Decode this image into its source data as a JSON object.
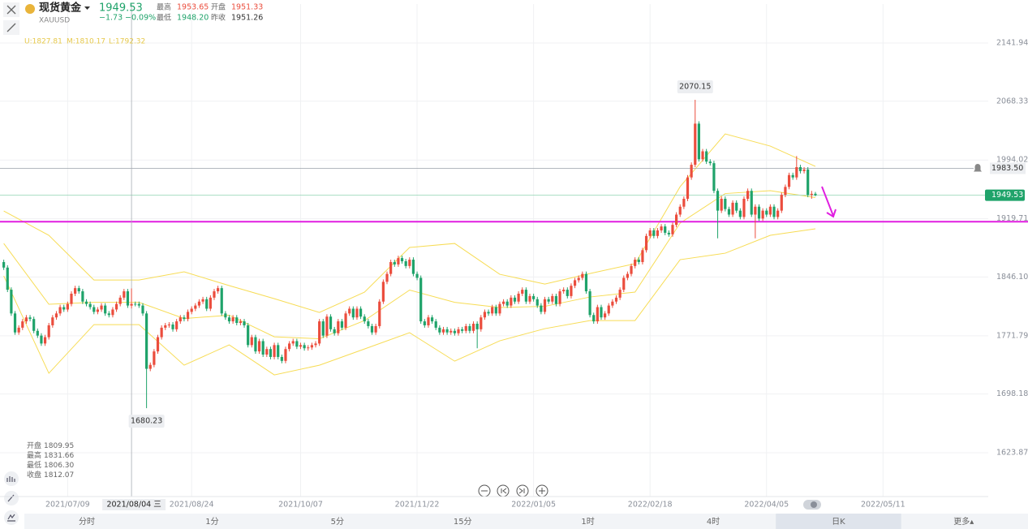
{
  "header": {
    "name": "现货黄金",
    "symbol": "XAUUSD",
    "price": "1949.53",
    "change": "−1.73",
    "change_pct": "−0.09%",
    "stats": [
      {
        "label": "最高",
        "value": "1953.65"
      },
      {
        "label": "开盘",
        "value": "1951.33"
      },
      {
        "label": "最低",
        "value": "1948.20"
      },
      {
        "label": "昨收",
        "value": "1951.26"
      }
    ]
  },
  "chart_data": {
    "type": "candlestick",
    "up_color": "#eb4d3d",
    "down_color": "#1fa36a",
    "candles": [
      [
        1865,
        1868,
        1855,
        1858
      ],
      [
        1858,
        1861,
        1827,
        1830
      ],
      [
        1830,
        1833,
        1797,
        1800
      ],
      [
        1800,
        1803,
        1773,
        1776
      ],
      [
        1776,
        1785,
        1773,
        1782
      ],
      [
        1782,
        1793,
        1779,
        1790
      ],
      [
        1790,
        1798,
        1787,
        1795
      ],
      [
        1795,
        1798,
        1790,
        1793
      ],
      [
        1793,
        1796,
        1775,
        1778
      ],
      [
        1778,
        1781,
        1769,
        1772
      ],
      [
        1772,
        1775,
        1759,
        1762
      ],
      [
        1762,
        1773,
        1759,
        1770
      ],
      [
        1770,
        1788,
        1767,
        1785
      ],
      [
        1785,
        1798,
        1782,
        1795
      ],
      [
        1795,
        1803,
        1792,
        1800
      ],
      [
        1800,
        1811,
        1797,
        1808
      ],
      [
        1808,
        1811,
        1802,
        1805
      ],
      [
        1805,
        1815,
        1802,
        1812
      ],
      [
        1812,
        1828,
        1809,
        1825
      ],
      [
        1825,
        1835,
        1822,
        1832
      ],
      [
        1832,
        1835,
        1825,
        1828
      ],
      [
        1828,
        1831,
        1812,
        1815
      ],
      [
        1815,
        1818,
        1809,
        1812
      ],
      [
        1812,
        1815,
        1805,
        1808
      ],
      [
        1808,
        1811,
        1799,
        1802
      ],
      [
        1802,
        1808,
        1799,
        1805
      ],
      [
        1805,
        1813,
        1802,
        1810
      ],
      [
        1810,
        1813,
        1797,
        1800
      ],
      [
        1800,
        1803,
        1795,
        1798
      ],
      [
        1798,
        1808,
        1795,
        1805
      ],
      [
        1805,
        1815,
        1802,
        1812
      ],
      [
        1812,
        1823,
        1809,
        1820
      ],
      [
        1820,
        1831,
        1817,
        1828
      ],
      [
        1828,
        1831,
        1807,
        1810
      ],
      [
        1809.95,
        1831.66,
        1806.3,
        1812.07
      ],
      [
        1812.07,
        1815,
        1809,
        1812
      ],
      [
        1812,
        1815,
        1807,
        1810
      ],
      [
        1810,
        1813,
        1797,
        1800
      ],
      [
        1800,
        1803,
        1680.23,
        1730
      ],
      [
        1730,
        1738,
        1727,
        1735
      ],
      [
        1735,
        1755,
        1732,
        1752
      ],
      [
        1752,
        1773,
        1749,
        1770
      ],
      [
        1770,
        1785,
        1767,
        1782
      ],
      [
        1782,
        1788,
        1779,
        1785
      ],
      [
        1785,
        1789,
        1782,
        1786
      ],
      [
        1786,
        1789,
        1777,
        1780
      ],
      [
        1780,
        1793,
        1777,
        1790
      ],
      [
        1790,
        1798,
        1787,
        1795
      ],
      [
        1795,
        1798,
        1790,
        1793
      ],
      [
        1793,
        1805,
        1790,
        1802
      ],
      [
        1802,
        1809,
        1799,
        1806
      ],
      [
        1806,
        1813,
        1803,
        1810
      ],
      [
        1810,
        1818,
        1807,
        1815
      ],
      [
        1815,
        1821,
        1812,
        1818
      ],
      [
        1818,
        1821,
        1803,
        1806
      ],
      [
        1806,
        1823,
        1803,
        1820
      ],
      [
        1820,
        1831,
        1817,
        1828
      ],
      [
        1828,
        1835,
        1825,
        1832
      ],
      [
        1832,
        1835,
        1797,
        1800
      ],
      [
        1800,
        1803,
        1792,
        1795
      ],
      [
        1795,
        1798,
        1787,
        1790
      ],
      [
        1790,
        1798,
        1787,
        1795
      ],
      [
        1795,
        1798,
        1785,
        1788
      ],
      [
        1788,
        1793,
        1785,
        1790
      ],
      [
        1790,
        1793,
        1782,
        1785
      ],
      [
        1785,
        1788,
        1757,
        1760
      ],
      [
        1760,
        1773,
        1757,
        1770
      ],
      [
        1770,
        1773,
        1749,
        1752
      ],
      [
        1752,
        1768,
        1749,
        1765
      ],
      [
        1765,
        1768,
        1745,
        1748
      ],
      [
        1748,
        1758,
        1745,
        1755
      ],
      [
        1755,
        1758,
        1742,
        1745
      ],
      [
        1745,
        1763,
        1742,
        1760
      ],
      [
        1760,
        1763,
        1742,
        1745
      ],
      [
        1745,
        1748,
        1737,
        1740
      ],
      [
        1740,
        1758,
        1737,
        1755
      ],
      [
        1755,
        1765,
        1752,
        1762
      ],
      [
        1762,
        1768,
        1759,
        1765
      ],
      [
        1765,
        1768,
        1755,
        1758
      ],
      [
        1758,
        1763,
        1755,
        1760
      ],
      [
        1760,
        1763,
        1753,
        1756
      ],
      [
        1756,
        1760,
        1753,
        1757
      ],
      [
        1757,
        1763,
        1754,
        1760
      ],
      [
        1760,
        1765,
        1757,
        1762
      ],
      [
        1762,
        1793,
        1759,
        1790
      ],
      [
        1790,
        1793,
        1769,
        1772
      ],
      [
        1772,
        1799,
        1769,
        1796
      ],
      [
        1796,
        1799,
        1777,
        1780
      ],
      [
        1780,
        1783,
        1772,
        1775
      ],
      [
        1775,
        1793,
        1772,
        1790
      ],
      [
        1790,
        1793,
        1779,
        1782
      ],
      [
        1782,
        1803,
        1779,
        1800
      ],
      [
        1800,
        1809,
        1797,
        1806
      ],
      [
        1806,
        1809,
        1792,
        1795
      ],
      [
        1795,
        1809,
        1792,
        1806
      ],
      [
        1806,
        1809,
        1793,
        1796
      ],
      [
        1796,
        1799,
        1787,
        1790
      ],
      [
        1790,
        1793,
        1781,
        1784
      ],
      [
        1784,
        1787,
        1773,
        1776
      ],
      [
        1776,
        1787,
        1773,
        1784
      ],
      [
        1784,
        1818,
        1781,
        1815
      ],
      [
        1815,
        1843,
        1812,
        1840
      ],
      [
        1840,
        1853,
        1837,
        1850
      ],
      [
        1850,
        1868,
        1847,
        1865
      ],
      [
        1865,
        1868,
        1859,
        1862
      ],
      [
        1862,
        1873,
        1859,
        1870
      ],
      [
        1870,
        1873,
        1863,
        1866
      ],
      [
        1866,
        1869,
        1857,
        1860
      ],
      [
        1860,
        1871,
        1857,
        1868
      ],
      [
        1868,
        1871,
        1847,
        1850
      ],
      [
        1850,
        1853,
        1842,
        1845
      ],
      [
        1845,
        1848,
        1787,
        1790
      ],
      [
        1790,
        1793,
        1782,
        1785
      ],
      [
        1785,
        1798,
        1782,
        1795
      ],
      [
        1795,
        1798,
        1787,
        1790
      ],
      [
        1790,
        1793,
        1779,
        1782
      ],
      [
        1782,
        1785,
        1773,
        1776
      ],
      [
        1776,
        1783,
        1773,
        1780
      ],
      [
        1780,
        1783,
        1773,
        1776
      ],
      [
        1776,
        1781,
        1773,
        1778
      ],
      [
        1778,
        1781,
        1772,
        1775
      ],
      [
        1775,
        1783,
        1772,
        1780
      ],
      [
        1780,
        1783,
        1775,
        1778
      ],
      [
        1778,
        1787,
        1775,
        1784
      ],
      [
        1784,
        1787,
        1775,
        1778
      ],
      [
        1778,
        1790,
        1775,
        1787
      ],
      [
        1787,
        1790,
        1756,
        1780
      ],
      [
        1780,
        1798,
        1777,
        1795
      ],
      [
        1795,
        1805,
        1792,
        1802
      ],
      [
        1802,
        1805,
        1797,
        1800
      ],
      [
        1800,
        1811,
        1797,
        1808
      ],
      [
        1808,
        1811,
        1797,
        1800
      ],
      [
        1800,
        1815,
        1797,
        1812
      ],
      [
        1812,
        1818,
        1809,
        1815
      ],
      [
        1815,
        1818,
        1807,
        1810
      ],
      [
        1810,
        1823,
        1807,
        1820
      ],
      [
        1820,
        1823,
        1812,
        1815
      ],
      [
        1815,
        1828,
        1812,
        1825
      ],
      [
        1825,
        1833,
        1822,
        1830
      ],
      [
        1830,
        1833,
        1812,
        1815
      ],
      [
        1815,
        1825,
        1812,
        1822
      ],
      [
        1822,
        1825,
        1815,
        1818
      ],
      [
        1818,
        1821,
        1807,
        1810
      ],
      [
        1810,
        1813,
        1799,
        1802
      ],
      [
        1802,
        1821,
        1799,
        1818
      ],
      [
        1818,
        1821,
        1812,
        1815
      ],
      [
        1815,
        1825,
        1812,
        1822
      ],
      [
        1822,
        1825,
        1809,
        1812
      ],
      [
        1812,
        1831,
        1809,
        1828
      ],
      [
        1828,
        1833,
        1825,
        1830
      ],
      [
        1830,
        1833,
        1819,
        1822
      ],
      [
        1822,
        1838,
        1819,
        1835
      ],
      [
        1835,
        1845,
        1832,
        1842
      ],
      [
        1842,
        1848,
        1839,
        1845
      ],
      [
        1845,
        1853,
        1842,
        1850
      ],
      [
        1850,
        1853,
        1825,
        1828
      ],
      [
        1828,
        1831,
        1795,
        1798
      ],
      [
        1798,
        1801,
        1787,
        1790
      ],
      [
        1790,
        1811,
        1787,
        1808
      ],
      [
        1808,
        1811,
        1792,
        1795
      ],
      [
        1795,
        1803,
        1792,
        1800
      ],
      [
        1800,
        1813,
        1797,
        1810
      ],
      [
        1810,
        1818,
        1807,
        1815
      ],
      [
        1815,
        1823,
        1812,
        1820
      ],
      [
        1820,
        1833,
        1817,
        1830
      ],
      [
        1830,
        1848,
        1827,
        1845
      ],
      [
        1845,
        1853,
        1842,
        1850
      ],
      [
        1850,
        1863,
        1847,
        1860
      ],
      [
        1860,
        1871,
        1857,
        1868
      ],
      [
        1868,
        1871,
        1862,
        1865
      ],
      [
        1865,
        1883,
        1862,
        1880
      ],
      [
        1880,
        1901,
        1877,
        1898
      ],
      [
        1898,
        1908,
        1895,
        1905
      ],
      [
        1905,
        1908,
        1895,
        1898
      ],
      [
        1898,
        1908,
        1895,
        1905
      ],
      [
        1905,
        1913,
        1902,
        1910
      ],
      [
        1910,
        1913,
        1899,
        1902
      ],
      [
        1902,
        1905,
        1897,
        1900
      ],
      [
        1900,
        1915,
        1897,
        1912
      ],
      [
        1912,
        1928,
        1909,
        1925
      ],
      [
        1925,
        1938,
        1922,
        1935
      ],
      [
        1935,
        1948,
        1932,
        1945
      ],
      [
        1945,
        1975,
        1942,
        1972
      ],
      [
        1972,
        1991,
        1969,
        1988
      ],
      [
        1988,
        2070.15,
        1985,
        2040
      ],
      [
        2040,
        2043,
        1992,
        1995
      ],
      [
        1995,
        2008,
        1992,
        2005
      ],
      [
        2005,
        2008,
        1989,
        1992
      ],
      [
        1992,
        1995,
        1987,
        1990
      ],
      [
        1990,
        1993,
        1952,
        1955
      ],
      [
        1955,
        1958,
        1895,
        1930
      ],
      [
        1930,
        1948,
        1927,
        1945
      ],
      [
        1945,
        1948,
        1929,
        1932
      ],
      [
        1932,
        1935,
        1922,
        1925
      ],
      [
        1925,
        1943,
        1922,
        1940
      ],
      [
        1940,
        1943,
        1927,
        1930
      ],
      [
        1930,
        1933,
        1919,
        1922
      ],
      [
        1922,
        1948,
        1919,
        1945
      ],
      [
        1945,
        1958,
        1942,
        1955
      ],
      [
        1955,
        1958,
        1922,
        1925
      ],
      [
        1925,
        1938,
        1895,
        1935
      ],
      [
        1935,
        1938,
        1917,
        1920
      ],
      [
        1920,
        1933,
        1917,
        1930
      ],
      [
        1930,
        1933,
        1922,
        1925
      ],
      [
        1925,
        1938,
        1922,
        1935
      ],
      [
        1935,
        1938,
        1919,
        1922
      ],
      [
        1922,
        1933,
        1919,
        1930
      ],
      [
        1930,
        1953,
        1927,
        1950
      ],
      [
        1950,
        1963,
        1947,
        1960
      ],
      [
        1960,
        1978,
        1957,
        1975
      ],
      [
        1975,
        1978,
        1969,
        1972
      ],
      [
        1972,
        1999,
        1969,
        1985
      ],
      [
        1985,
        1988,
        1977,
        1980
      ],
      [
        1980,
        1985,
        1977,
        1982
      ],
      [
        1982,
        1985,
        1947,
        1950
      ],
      [
        1950,
        1955,
        1945,
        1951.26
      ],
      [
        1951.33,
        1953.65,
        1948.2,
        1949.53
      ]
    ],
    "xlim": [
      -1,
      262
    ],
    "xticks": [
      {
        "value": 17,
        "label": "2021/07/09"
      },
      {
        "value": 50,
        "label": "2021/08/24"
      },
      {
        "value": 79,
        "label": "2021/10/07"
      },
      {
        "value": 110,
        "label": "2021/11/22"
      },
      {
        "value": 141,
        "label": "2022/01/05"
      },
      {
        "value": 172,
        "label": "2022/02/18"
      },
      {
        "value": 203,
        "label": "2022/04/05"
      },
      {
        "value": 234,
        "label": "2022/05/11"
      }
    ],
    "ylim": [
      1568.5,
      2191.2
    ],
    "yticks": [
      2141.94,
      2068.33,
      1994.02,
      1919.71,
      {
        "value": 1846.1,
        "label": "1846.10"
      },
      1771.79,
      1698.18,
      1623.87
    ],
    "grid": true,
    "bands": {
      "color": "#f7dc55",
      "x": [
        0,
        12,
        24,
        36,
        48,
        60,
        72,
        84,
        96,
        108,
        120,
        132,
        144,
        156,
        168,
        180,
        192,
        204,
        216
      ],
      "series": [
        {
          "values": [
            1929.5,
            1898.8,
            1842.3,
            1842.3,
            1852.6,
            1835.2,
            1818.7,
            1801.3,
            1826.9,
            1883.4,
            1888.5,
            1849.5,
            1837.2,
            1850.5,
            1862.9,
            1960.3,
            2027.0,
            2011.6,
            1986.0
          ]
        },
        {
          "values": [
            1888.5,
            1811.6,
            1814.1,
            1814.1,
            1793.6,
            1797.8,
            1770.5,
            1768.0,
            1791.0,
            1829.6,
            1814.1,
            1807.5,
            1809.0,
            1820.8,
            1827.0,
            1914.2,
            1951.6,
            1955.2,
            1946.5
          ]
        },
        {
          "values": [
            1847.5,
            1724.4,
            1785.9,
            1785.9,
            1734.6,
            1760.3,
            1722.3,
            1734.6,
            1755.1,
            1775.7,
            1739.7,
            1765.4,
            1780.8,
            1791.0,
            1791.0,
            1868.0,
            1876.2,
            1898.8,
            1907.0
          ]
        }
      ]
    },
    "band_readout": [
      "U:1827.81",
      "M:1810.17",
      "L:1792.32"
    ],
    "max_label": "2070.15",
    "min_label": "1680.23",
    "last_price": 1949.53,
    "alert_price": {
      "value": 1983.5,
      "label": "1983.50"
    },
    "drawn_line": {
      "value": 1916,
      "color": "#e01fe0"
    },
    "crosshair": {
      "x": 34,
      "label": "2021/08/04 三",
      "readout": [
        {
          "label": "开盘",
          "value": "1809.95"
        },
        {
          "label": "最高",
          "value": "1831.66"
        },
        {
          "label": "最低",
          "value": "1806.30"
        },
        {
          "label": "收盘",
          "value": "1812.07"
        }
      ]
    }
  },
  "toolbar": {
    "items": [
      "分时",
      "1分",
      "5分",
      "15分",
      "1时",
      "4时",
      "日K",
      "更多▴"
    ],
    "active": 6
  }
}
